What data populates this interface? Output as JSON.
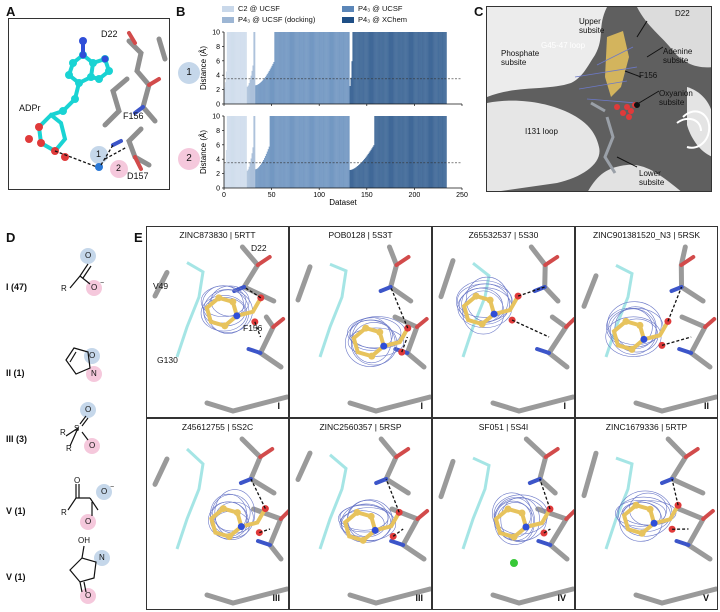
{
  "panels": {
    "A": {
      "letter": "A",
      "labels": {
        "d22": "D22",
        "adpr": "ADPr",
        "f156": "F156",
        "d157": "D157",
        "site1": "1",
        "site2": "2"
      }
    },
    "B": {
      "letter": "B",
      "legend": [
        {
          "name": "C2 @ UCSF",
          "color": "#c9d8ea"
        },
        {
          "name": "P4₃ @ UCSF (docking)",
          "color": "#9db6d4"
        },
        {
          "name": "P4₃ @ UCSF",
          "color": "#5b86b8"
        },
        {
          "name": "P4₃ @ XChem",
          "color": "#1f4f86"
        }
      ],
      "subplots": [
        {
          "badge": "1",
          "badge_color": "#c5d7ea"
        },
        {
          "badge": "2",
          "badge_color": "#f5c8dc"
        }
      ]
    },
    "C": {
      "letter": "C",
      "labels": {
        "upper": "Upper\nsubsite",
        "d22": "D22",
        "g45": "G45-47 loop",
        "adenine": "Adenine\nsubsite",
        "phosphate": "Phosphate\nsubsite",
        "f156": "F156",
        "oxyanion": "Oxyanion\nsubsite",
        "i131": "I131 loop",
        "lower": "Lower\nsubsite"
      }
    },
    "D": {
      "letter": "D",
      "groups": [
        {
          "label": "I (47)"
        },
        {
          "label": "II (1)"
        },
        {
          "label": "III (3)"
        },
        {
          "label": "V (1)"
        },
        {
          "label": "V (1)"
        }
      ],
      "atoms": {
        "R": "R",
        "O": "O",
        "N": "N",
        "S": "S",
        "OH": "OH",
        "minus": "−"
      }
    },
    "E": {
      "letter": "E",
      "tiles": [
        {
          "title": "ZINC873830 | 5RTT",
          "roman": "I",
          "extra": [
            "D22",
            "V49",
            "F156",
            "G130"
          ]
        },
        {
          "title": "POB0128 | 5S3T",
          "roman": "I",
          "extra": []
        },
        {
          "title": "Z65532537 | 5S30",
          "roman": "I",
          "extra": []
        },
        {
          "title": "ZINC901381520_N3 | 5RSK",
          "roman": "II",
          "extra": []
        },
        {
          "title": "Z45612755 | 5S2C",
          "roman": "III",
          "extra": []
        },
        {
          "title": "ZINC2560357 | 5RSP",
          "roman": "III",
          "extra": []
        },
        {
          "title": "SF051 | 5S4I",
          "roman": "IV",
          "extra": []
        },
        {
          "title": "ZINC1679336 | 5RTP",
          "roman": "V",
          "extra": []
        }
      ]
    }
  },
  "chart_data": {
    "type": "bar",
    "title": "",
    "xlabel": "Dataset",
    "ylabel": "Distance (Å)",
    "xlim": [
      0,
      250
    ],
    "ylim": [
      0,
      10
    ],
    "xticks": [
      0,
      50,
      100,
      150,
      200,
      250
    ],
    "yticks": [
      0,
      2,
      4,
      6,
      8,
      10
    ],
    "threshold": 3.5,
    "segments": [
      {
        "name": "C2 @ UCSF",
        "color": "#c9d8ea",
        "x_range": [
          1,
          24
        ]
      },
      {
        "name": "P4₃ @ UCSF (docking)",
        "color": "#9db6d4",
        "x_range": [
          25,
          33
        ]
      },
      {
        "name": "P4₃ @ UCSF",
        "color": "#5b86b8",
        "x_range": [
          34,
          132
        ]
      },
      {
        "name": "P4₃ @ XChem",
        "color": "#1f4f86",
        "x_range": [
          133,
          234
        ]
      }
    ],
    "series": [
      {
        "name": "1",
        "profile": [
          {
            "seg": 0,
            "start": 2.3,
            "end": 10.0,
            "jump_at": 0.12
          },
          {
            "seg": 1,
            "start": 2.4,
            "end": 10.0,
            "jump_at": 0.85
          },
          {
            "seg": 2,
            "start": 2.6,
            "end": 10.0,
            "jump_at": 0.2
          },
          {
            "seg": 3,
            "start": 2.5,
            "end": 10.0,
            "jump_at": 0.02
          }
        ]
      },
      {
        "name": "2",
        "profile": [
          {
            "seg": 0,
            "start": 2.4,
            "end": 10.0,
            "jump_at": 0.1
          },
          {
            "seg": 1,
            "start": 2.4,
            "end": 10.0,
            "jump_at": 0.8
          },
          {
            "seg": 2,
            "start": 2.6,
            "end": 10.0,
            "jump_at": 0.15
          },
          {
            "seg": 3,
            "start": 2.5,
            "end": 10.0,
            "jump_at": 0.25
          }
        ]
      }
    ]
  },
  "colors": {
    "ligand": "#e7c35d",
    "mesh": "#6c79c8",
    "protein": "#9a9a9a",
    "adpr": "#19d3d3",
    "oxygen": "#e03a3a",
    "nitrogen": "#2f4ed8",
    "blue_badge": "#c5d7ea",
    "pink_badge": "#f5c8dc"
  }
}
